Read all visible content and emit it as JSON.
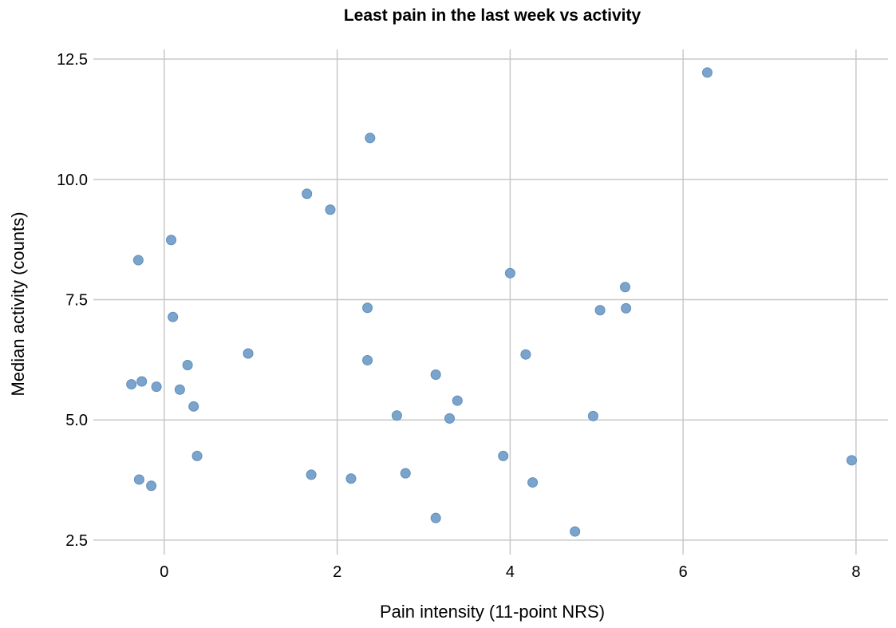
{
  "chart_data": {
    "type": "scatter",
    "title": "Least pain in the last week vs activity",
    "xlabel": "Pain intensity (11-point NRS)",
    "ylabel": "Median activity (counts)",
    "xlim": [
      -0.82,
      8.37
    ],
    "ylim": [
      2.2,
      12.7
    ],
    "xticks": [
      0,
      2,
      4,
      6,
      8
    ],
    "xtick_labels": [
      "0",
      "2",
      "4",
      "6",
      "8"
    ],
    "yticks": [
      2.5,
      5.0,
      7.5,
      10.0,
      12.5
    ],
    "ytick_labels": [
      "2.5",
      "5.0",
      "7.5",
      "10.0",
      "12.5"
    ],
    "grid": true,
    "point_color": "#7ba4cc",
    "points": [
      {
        "x": 6.28,
        "y": 12.22
      },
      {
        "x": 2.38,
        "y": 10.86
      },
      {
        "x": 1.65,
        "y": 9.7
      },
      {
        "x": 1.92,
        "y": 9.37
      },
      {
        "x": 0.08,
        "y": 8.74
      },
      {
        "x": -0.3,
        "y": 8.32
      },
      {
        "x": 4.0,
        "y": 8.05
      },
      {
        "x": 5.33,
        "y": 7.76
      },
      {
        "x": 2.35,
        "y": 7.33
      },
      {
        "x": 5.34,
        "y": 7.32
      },
      {
        "x": 5.04,
        "y": 7.28
      },
      {
        "x": 0.1,
        "y": 7.14
      },
      {
        "x": 0.97,
        "y": 6.38
      },
      {
        "x": 4.18,
        "y": 6.36
      },
      {
        "x": 2.35,
        "y": 6.24
      },
      {
        "x": 0.27,
        "y": 6.14
      },
      {
        "x": 3.14,
        "y": 5.94
      },
      {
        "x": -0.26,
        "y": 5.8
      },
      {
        "x": -0.38,
        "y": 5.74
      },
      {
        "x": -0.09,
        "y": 5.69
      },
      {
        "x": 0.18,
        "y": 5.63
      },
      {
        "x": 3.39,
        "y": 5.4
      },
      {
        "x": 0.34,
        "y": 5.28
      },
      {
        "x": 2.69,
        "y": 5.09
      },
      {
        "x": 4.96,
        "y": 5.08
      },
      {
        "x": 3.3,
        "y": 5.03
      },
      {
        "x": 0.38,
        "y": 4.25
      },
      {
        "x": 3.92,
        "y": 4.25
      },
      {
        "x": 7.95,
        "y": 4.16
      },
      {
        "x": 2.79,
        "y": 3.89
      },
      {
        "x": 1.7,
        "y": 3.86
      },
      {
        "x": 2.16,
        "y": 3.78
      },
      {
        "x": -0.29,
        "y": 3.76
      },
      {
        "x": 4.26,
        "y": 3.7
      },
      {
        "x": -0.15,
        "y": 3.63
      },
      {
        "x": 3.14,
        "y": 2.96
      },
      {
        "x": 4.75,
        "y": 2.68
      }
    ]
  }
}
